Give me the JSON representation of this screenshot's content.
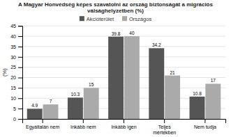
{
  "chart_data": {
    "type": "bar",
    "title": "A Magyar Honvédség képes szavatolni az ország biztonságát a migrációs\nválsághelyzetben (%)",
    "categories": [
      "Egyáltalán nem",
      "Inkább nem",
      "Inkább igen",
      "Teljes\nmértékben",
      "Nem tudja"
    ],
    "series": [
      {
        "name": "Akcióterület",
        "color": "#555555",
        "values": [
          4.9,
          10.3,
          39.8,
          34.2,
          10.8
        ]
      },
      {
        "name": "Országos",
        "color": "#aaaaaa",
        "values": [
          7,
          15,
          40,
          21,
          17
        ]
      }
    ],
    "ylabel": "(%)",
    "ylim": [
      0,
      45
    ],
    "yticks": [
      0,
      5,
      10,
      15,
      20,
      25,
      30,
      35,
      40,
      45
    ],
    "grid": true,
    "legend": "top",
    "data_labels": true
  }
}
